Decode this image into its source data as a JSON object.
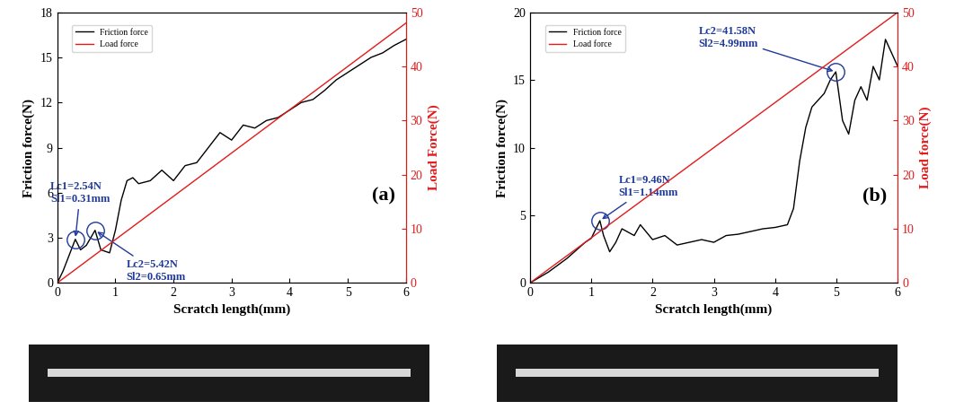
{
  "chart_data": [
    {
      "type": "line",
      "panel_label": "(a)",
      "xlabel": "Scratch length(mm)",
      "ylabel": "Friction force(N)",
      "y2label": "Load Force(N)",
      "xlim": [
        0,
        6
      ],
      "xticks": [
        0,
        1,
        2,
        3,
        4,
        5,
        6
      ],
      "ylim": [
        0,
        18
      ],
      "yticks": [
        0,
        3,
        6,
        9,
        12,
        15,
        18
      ],
      "y2lim": [
        0,
        50
      ],
      "y2ticks": [
        0,
        10,
        20,
        30,
        40,
        50
      ],
      "legend": "upper left",
      "series": [
        {
          "name": "Friction force",
          "color": "#000000",
          "x": [
            0,
            0.1,
            0.2,
            0.31,
            0.4,
            0.5,
            0.65,
            0.75,
            0.9,
            1.0,
            1.1,
            1.2,
            1.3,
            1.4,
            1.6,
            1.8,
            2.0,
            2.2,
            2.4,
            2.6,
            2.8,
            3.0,
            3.2,
            3.4,
            3.6,
            3.8,
            4.0,
            4.2,
            4.4,
            4.6,
            4.8,
            5.0,
            5.2,
            5.4,
            5.6,
            5.8,
            6.0
          ],
          "values": [
            0,
            0.8,
            1.8,
            2.9,
            2.2,
            2.5,
            3.5,
            2.2,
            2.0,
            3.5,
            5.5,
            6.8,
            7.0,
            6.6,
            6.8,
            7.5,
            6.8,
            7.8,
            8.0,
            9.0,
            10.0,
            9.5,
            10.5,
            10.3,
            10.8,
            11.0,
            11.5,
            12.0,
            12.2,
            12.8,
            13.5,
            14.0,
            14.5,
            15.0,
            15.3,
            15.8,
            16.2
          ]
        },
        {
          "name": "Load force",
          "color": "#e31a1c",
          "axis": "y2",
          "x": [
            0,
            6
          ],
          "values": [
            0,
            48
          ]
        }
      ],
      "annotations": [
        {
          "text": "Lc1=2.54N\nSl1=0.31mm",
          "x": 0.31,
          "y": 2.9
        },
        {
          "text": "Lc2=5.42N\nSl2=0.65mm",
          "x": 0.65,
          "y": 3.5
        }
      ]
    },
    {
      "type": "line",
      "panel_label": "(b)",
      "xlabel": "Scratch length(mm)",
      "ylabel": "Friction force(N)",
      "y2label": "Load force(N)",
      "xlim": [
        0,
        6
      ],
      "xticks": [
        0,
        1,
        2,
        3,
        4,
        5,
        6
      ],
      "ylim": [
        0,
        20
      ],
      "yticks": [
        0,
        5,
        10,
        15,
        20
      ],
      "y2lim": [
        0,
        50
      ],
      "y2ticks": [
        0,
        10,
        20,
        30,
        40,
        50
      ],
      "legend": "upper left",
      "series": [
        {
          "name": "Friction force",
          "color": "#000000",
          "x": [
            0,
            0.3,
            0.6,
            0.9,
            1.0,
            1.14,
            1.2,
            1.3,
            1.4,
            1.5,
            1.7,
            1.8,
            2.0,
            2.2,
            2.4,
            2.6,
            2.8,
            3.0,
            3.2,
            3.4,
            3.6,
            3.8,
            4.0,
            4.2,
            4.3,
            4.4,
            4.5,
            4.6,
            4.8,
            4.9,
            4.99,
            5.1,
            5.2,
            5.3,
            5.4,
            5.5,
            5.6,
            5.7,
            5.8,
            5.9,
            6.0
          ],
          "values": [
            0,
            0.8,
            1.8,
            3.0,
            3.3,
            4.6,
            3.5,
            2.3,
            3.0,
            4.0,
            3.5,
            4.3,
            3.2,
            3.5,
            2.8,
            3.0,
            3.2,
            3.0,
            3.5,
            3.6,
            3.8,
            4.0,
            4.1,
            4.3,
            5.5,
            9.0,
            11.5,
            13.0,
            14.0,
            15.0,
            15.6,
            12.0,
            11.0,
            13.5,
            14.5,
            13.5,
            16.0,
            15.0,
            18.0,
            17.0,
            16.0
          ]
        },
        {
          "name": "Load force",
          "color": "#e31a1c",
          "axis": "y2",
          "x": [
            0,
            6
          ],
          "values": [
            0,
            50
          ]
        }
      ],
      "annotations": [
        {
          "text": "Lc1=9.46N\nSl1=1.14mm",
          "x": 1.14,
          "y": 4.6
        },
        {
          "text": "Lc2=41.58N\nSl2=4.99mm",
          "x": 4.99,
          "y": 15.6
        }
      ]
    }
  ]
}
